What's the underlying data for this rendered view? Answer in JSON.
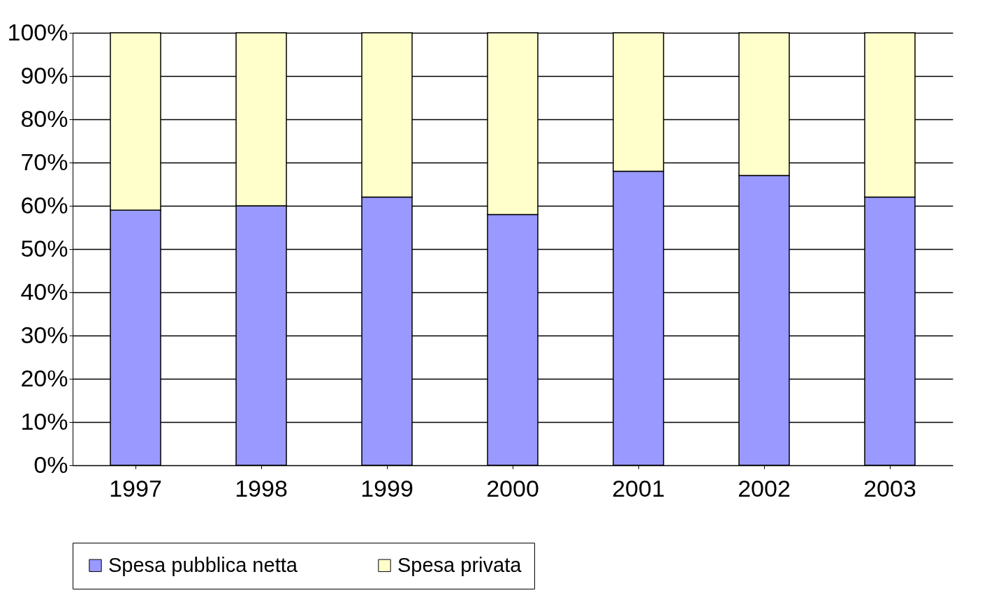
{
  "chart_data": {
    "type": "bar",
    "stacked": true,
    "categories": [
      "1997",
      "1998",
      "1999",
      "2000",
      "2001",
      "2002",
      "2003"
    ],
    "series": [
      {
        "name": "Spesa pubblica netta",
        "color": "#9999ff",
        "values": [
          59,
          60,
          62,
          58,
          68,
          67,
          62
        ]
      },
      {
        "name": "Spesa privata",
        "color": "#ffffcc",
        "values": [
          41,
          40,
          38,
          42,
          32,
          33,
          38
        ]
      }
    ],
    "ylim": [
      0,
      100
    ],
    "yticks": [
      {
        "value": 0,
        "label": "0%"
      },
      {
        "value": 10,
        "label": "10%"
      },
      {
        "value": 20,
        "label": "20%"
      },
      {
        "value": 30,
        "label": "30%"
      },
      {
        "value": 40,
        "label": "40%"
      },
      {
        "value": 50,
        "label": "50%"
      },
      {
        "value": 60,
        "label": "60%"
      },
      {
        "value": 70,
        "label": "70%"
      },
      {
        "value": 80,
        "label": "80%"
      },
      {
        "value": 90,
        "label": "90%"
      },
      {
        "value": 100,
        "label": "100%"
      }
    ],
    "grid": "y",
    "legend": "bottom"
  }
}
